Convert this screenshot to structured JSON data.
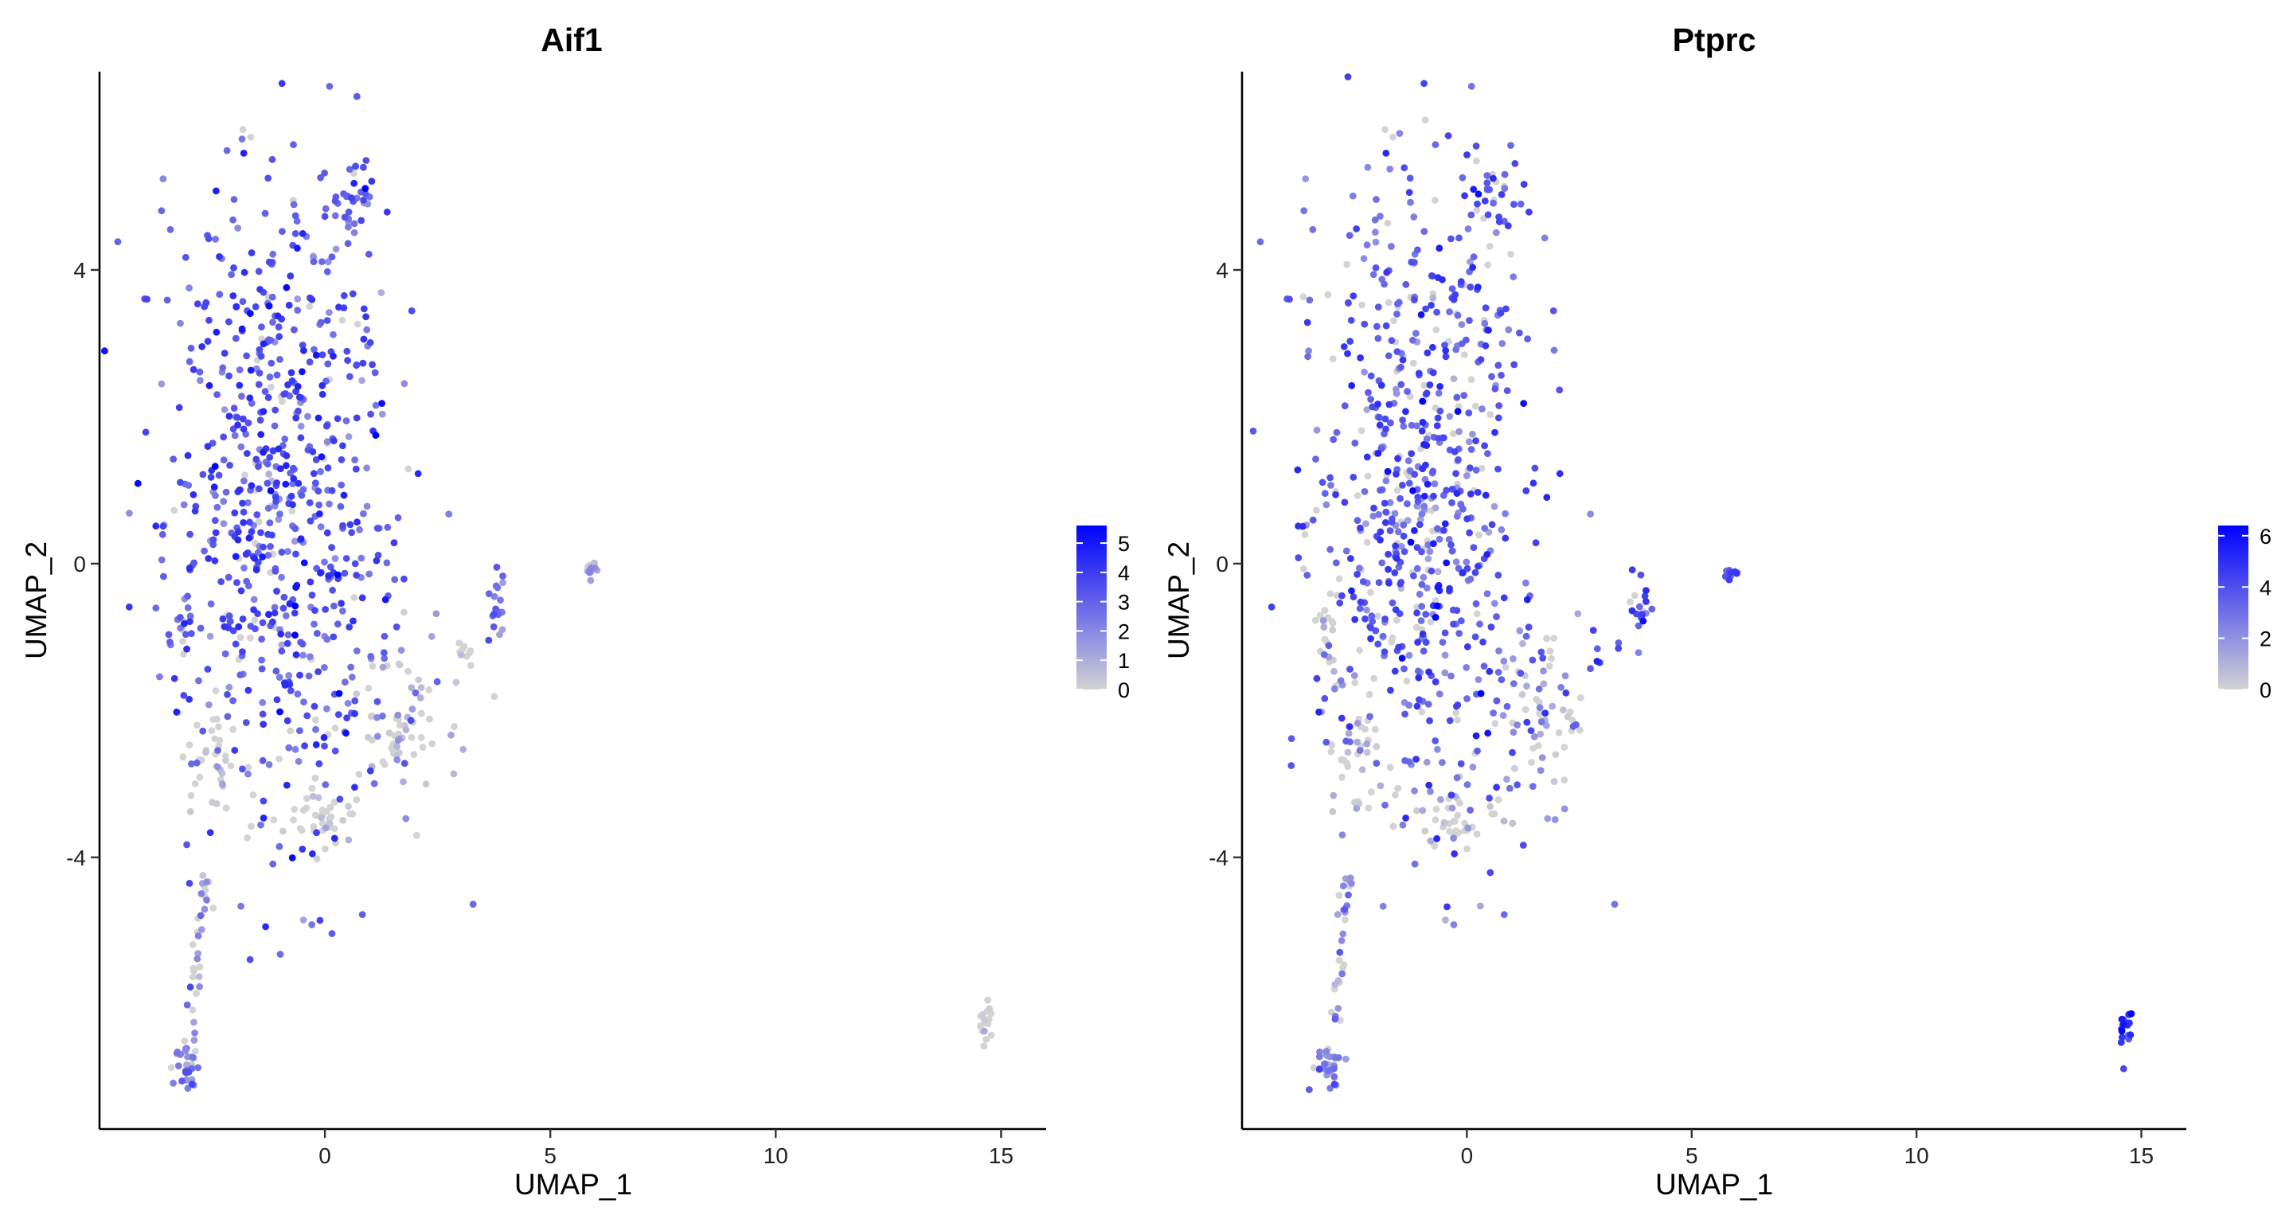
{
  "chart_data": [
    {
      "type": "scatter",
      "title": "Aif1",
      "xlabel": "UMAP_1",
      "ylabel": "UMAP_2",
      "xticks": [
        0,
        5,
        10,
        15
      ],
      "yticks": [
        -4,
        0,
        4
      ],
      "xlim": [
        -5.0,
        16.0
      ],
      "ylim": [
        -7.7,
        6.7
      ],
      "color_scale": {
        "low": "#d3d3d3",
        "high": "#0000ff",
        "range": [
          0,
          5.6
        ],
        "ticks": [
          0,
          1,
          2,
          3,
          4,
          5
        ]
      },
      "clusters": [
        {
          "x": -1.0,
          "y": 1.0,
          "xsd": 1.25,
          "ysd": 2.3,
          "n": 700,
          "mean_expr": 3.4,
          "expr_sd": 0.9,
          "zero_frac": 0.08
        },
        {
          "x": 0.55,
          "y": 5.0,
          "xsd": 0.3,
          "ysd": 0.35,
          "n": 35,
          "mean_expr": 3.2,
          "expr_sd": 0.8,
          "zero_frac": 0.05
        },
        {
          "x": 1.6,
          "y": -2.1,
          "xsd": 0.55,
          "ysd": 0.6,
          "n": 70,
          "mean_expr": 1.0,
          "expr_sd": 0.9,
          "zero_frac": 0.55
        },
        {
          "x": -0.3,
          "y": -3.5,
          "xsd": 0.5,
          "ysd": 0.25,
          "n": 40,
          "mean_expr": 0.8,
          "expr_sd": 0.8,
          "zero_frac": 0.6
        },
        {
          "x": -2.5,
          "y": -2.5,
          "xsd": 0.35,
          "ysd": 0.5,
          "n": 35,
          "mean_expr": 0.8,
          "expr_sd": 0.8,
          "zero_frac": 0.55
        },
        {
          "x": -3.1,
          "y": -1.0,
          "xsd": 0.15,
          "ysd": 0.35,
          "n": 20,
          "mean_expr": 2.8,
          "expr_sd": 0.9,
          "zero_frac": 0.15
        },
        {
          "x": 3.85,
          "y": -0.6,
          "xsd": 0.1,
          "ysd": 0.25,
          "n": 18,
          "mean_expr": 2.6,
          "expr_sd": 0.8,
          "zero_frac": 0.1
        },
        {
          "x": 5.9,
          "y": -0.1,
          "xsd": 0.08,
          "ysd": 0.06,
          "n": 12,
          "mean_expr": 1.5,
          "expr_sd": 1.0,
          "zero_frac": 0.3
        },
        {
          "x": 3.1,
          "y": -1.2,
          "xsd": 0.25,
          "ysd": 0.15,
          "n": 8,
          "mean_expr": 0.2,
          "expr_sd": 0.3,
          "zero_frac": 0.9
        },
        {
          "x": -3.05,
          "y": -6.8,
          "xsd": 0.15,
          "ysd": 0.2,
          "n": 30,
          "mean_expr": 2.2,
          "expr_sd": 0.8,
          "zero_frac": 0.1
        },
        {
          "x": 14.65,
          "y": -6.3,
          "xsd": 0.07,
          "ysd": 0.2,
          "n": 20,
          "mean_expr": 0.3,
          "expr_sd": 0.4,
          "zero_frac": 0.7
        }
      ],
      "trail": [
        [
          -2.6,
          -4.2
        ],
        [
          -3.0,
          -6.4
        ],
        30,
        1.8
      ]
    },
    {
      "type": "scatter",
      "title": "Ptprc",
      "xlabel": "UMAP_1",
      "ylabel": "UMAP_2",
      "xticks": [
        0,
        5,
        10,
        15
      ],
      "yticks": [
        -4,
        0,
        4
      ],
      "xlim": [
        -5.0,
        16.0
      ],
      "ylim": [
        -7.7,
        6.7
      ],
      "color_scale": {
        "low": "#d3d3d3",
        "high": "#0000ff",
        "range": [
          0,
          6.4
        ],
        "ticks": [
          0,
          2,
          4,
          6
        ]
      },
      "clusters": [
        {
          "x": -1.0,
          "y": 1.0,
          "xsd": 1.25,
          "ysd": 2.3,
          "n": 700,
          "mean_expr": 3.6,
          "expr_sd": 1.1,
          "zero_frac": 0.18
        },
        {
          "x": 0.55,
          "y": 5.0,
          "xsd": 0.3,
          "ysd": 0.35,
          "n": 35,
          "mean_expr": 3.8,
          "expr_sd": 0.9,
          "zero_frac": 0.15
        },
        {
          "x": 1.6,
          "y": -2.1,
          "xsd": 0.55,
          "ysd": 0.6,
          "n": 70,
          "mean_expr": 2.4,
          "expr_sd": 1.2,
          "zero_frac": 0.35
        },
        {
          "x": -0.3,
          "y": -3.5,
          "xsd": 0.5,
          "ysd": 0.25,
          "n": 40,
          "mean_expr": 1.2,
          "expr_sd": 1.0,
          "zero_frac": 0.55
        },
        {
          "x": -2.5,
          "y": -2.5,
          "xsd": 0.35,
          "ysd": 0.5,
          "n": 35,
          "mean_expr": 1.0,
          "expr_sd": 1.0,
          "zero_frac": 0.5
        },
        {
          "x": -3.1,
          "y": -1.0,
          "xsd": 0.15,
          "ysd": 0.35,
          "n": 20,
          "mean_expr": 0.6,
          "expr_sd": 0.8,
          "zero_frac": 0.7
        },
        {
          "x": 3.85,
          "y": -0.6,
          "xsd": 0.1,
          "ysd": 0.25,
          "n": 18,
          "mean_expr": 4.5,
          "expr_sd": 0.8,
          "zero_frac": 0.05
        },
        {
          "x": 5.9,
          "y": -0.1,
          "xsd": 0.08,
          "ysd": 0.06,
          "n": 12,
          "mean_expr": 3.5,
          "expr_sd": 0.8,
          "zero_frac": 0.1
        },
        {
          "x": 3.1,
          "y": -1.2,
          "xsd": 0.25,
          "ysd": 0.15,
          "n": 8,
          "mean_expr": 4.0,
          "expr_sd": 0.8,
          "zero_frac": 0.1
        },
        {
          "x": -3.05,
          "y": -6.8,
          "xsd": 0.15,
          "ysd": 0.2,
          "n": 30,
          "mean_expr": 2.5,
          "expr_sd": 0.9,
          "zero_frac": 0.1
        },
        {
          "x": 14.65,
          "y": -6.3,
          "xsd": 0.07,
          "ysd": 0.2,
          "n": 20,
          "mean_expr": 5.0,
          "expr_sd": 0.8,
          "zero_frac": 0.05
        }
      ],
      "trail": [
        [
          -2.6,
          -4.2
        ],
        [
          -3.0,
          -6.4
        ],
        30,
        2.4
      ]
    }
  ]
}
